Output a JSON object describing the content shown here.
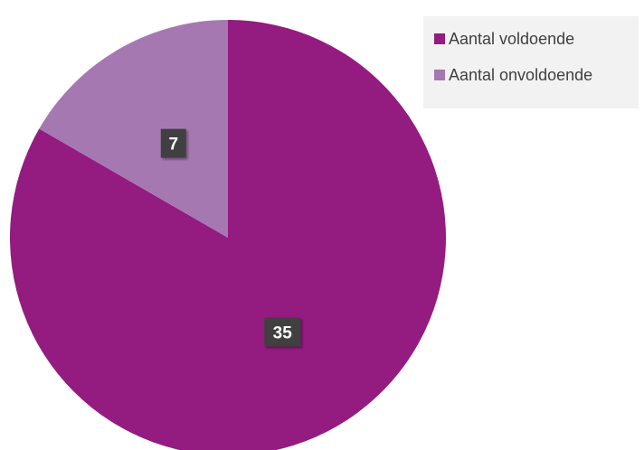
{
  "chart_data": {
    "type": "pie",
    "title": "",
    "slices": [
      {
        "label": "Aantal voldoende",
        "value": 35,
        "color": "#941b80"
      },
      {
        "label": "Aantal onvoldoende",
        "value": 7,
        "color": "#a678b2"
      }
    ],
    "data_labels": [
      "35",
      "7"
    ],
    "legend_position": "top-right",
    "label_box_color": "#404040",
    "label_text_color": "#ffffff"
  }
}
